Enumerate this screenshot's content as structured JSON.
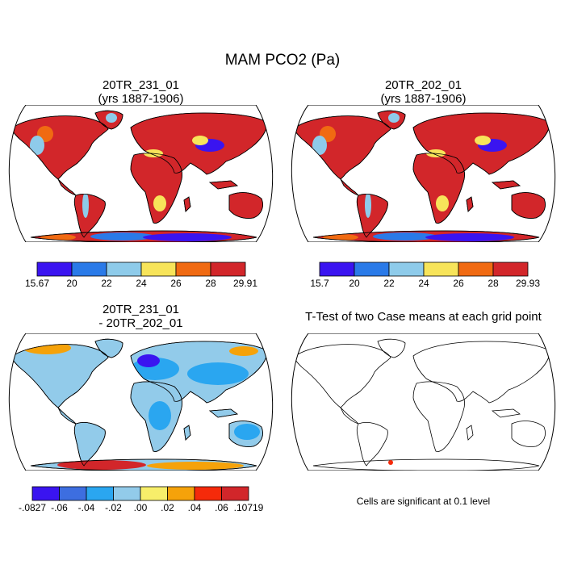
{
  "figure_title": "MAM PCO2 (Pa)",
  "panels": [
    {
      "id": "p1",
      "title_line1": "20TR_231_01",
      "title_line2": "(yrs 1887-1906)",
      "type": "field"
    },
    {
      "id": "p2",
      "title_line1": "20TR_202_01",
      "title_line2": "(yrs 1887-1906)",
      "type": "field"
    },
    {
      "id": "p3",
      "title_line1": "20TR_231_01",
      "title_line2": "- 20TR_202_01",
      "type": "difference"
    },
    {
      "id": "p4",
      "title_line1": "T-Test of two Case means at each grid point",
      "title_line2": "",
      "type": "ttest"
    }
  ],
  "colorbars": {
    "p1": {
      "colors": [
        "#3a14f0",
        "#2a7ae8",
        "#8ecbea",
        "#f7e45a",
        "#f06a12",
        "#d2262a"
      ],
      "labels": [
        "15.67",
        "20",
        "22",
        "24",
        "26",
        "28",
        "29.91"
      ]
    },
    "p2": {
      "colors": [
        "#3a14f0",
        "#2a7ae8",
        "#8ecbea",
        "#f7e45a",
        "#f06a12",
        "#d2262a"
      ],
      "labels": [
        "15.7",
        "20",
        "22",
        "24",
        "26",
        "28",
        "29.93"
      ]
    },
    "p3": {
      "colors": [
        "#3a14f0",
        "#3d6ee0",
        "#2aa6f0",
        "#92cbea",
        "#f7ee6a",
        "#f5a20a",
        "#f52a0a",
        "#d2262a"
      ],
      "labels": [
        "-.0827",
        "-.06",
        "-.04",
        "-.02",
        ".00",
        ".02",
        ".04",
        ".06",
        ".10719"
      ]
    }
  },
  "ttest_note": "Cells are significant at 0.1 level",
  "colors": {
    "ocean": "#ffffff",
    "coast": "#000000",
    "field_land": "#d2262a",
    "field_orange": "#f06a12",
    "field_yellow": "#f7e45a",
    "field_lightblue": "#8ecbea",
    "field_blue": "#2a7ae8",
    "field_deepblue": "#3a14f0",
    "diff_land": "#92cbea",
    "diff_blue": "#2aa6f0",
    "diff_orange": "#f5a20a",
    "diff_red": "#d2262a",
    "significant": "#f52a0a"
  }
}
